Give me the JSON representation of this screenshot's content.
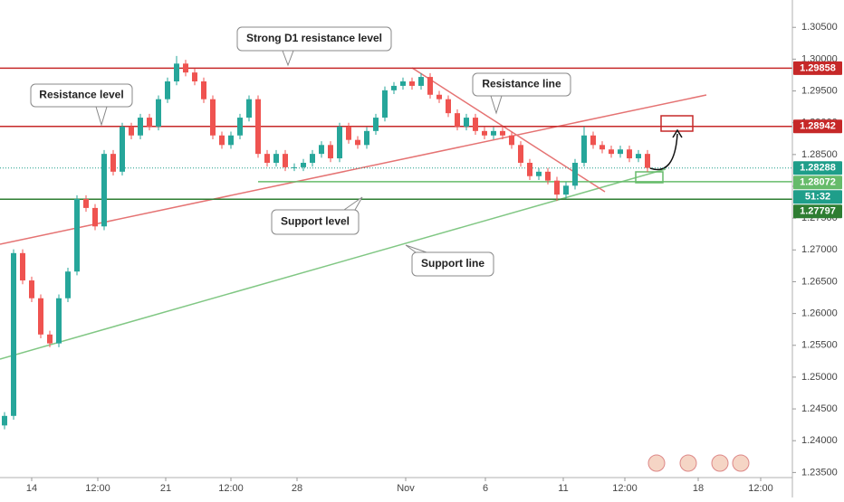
{
  "chart_data": {
    "type": "candlestick",
    "up_color": "#26a69a",
    "down_color": "#ef5350",
    "x": [
      0.5,
      1.5,
      2.5,
      3.5,
      4.5,
      5.5,
      6.5,
      7.5,
      8.5,
      9.5,
      10.5,
      11.5,
      12.5,
      13.5,
      14.5,
      15.5,
      16.5,
      17.5,
      18.5,
      19.5,
      20.5,
      21.5,
      22.5,
      23.5,
      24.5,
      25.5,
      26.5,
      27.5,
      28.5,
      29.5,
      30.5,
      31.5,
      32.5,
      33.5,
      34.5,
      35.5,
      36.5,
      37.5,
      38.5,
      39.5,
      40.5,
      41.5,
      42.5,
      43.5,
      44.5,
      45.5,
      46.5,
      47.5,
      48.5,
      49.5,
      50.5,
      51.5,
      52.5,
      53.5,
      54.5,
      55.5,
      56.5,
      57.5,
      58.5,
      59.5,
      60.5,
      61.5,
      62.5,
      63.5,
      64.5,
      65.5,
      66.5,
      67.5,
      68.5,
      69.5,
      70.5,
      71.5
    ],
    "open": [
      1.2424,
      1.2439,
      1.2695,
      1.2652,
      1.2624,
      1.2567,
      1.2553,
      1.2624,
      1.2666,
      1.278,
      1.2766,
      1.2737,
      1.2851,
      1.2823,
      1.2894,
      1.288,
      1.2908,
      1.2894,
      1.2937,
      1.2965,
      1.2993,
      1.2979,
      1.2965,
      1.2937,
      1.288,
      1.2865,
      1.288,
      1.2908,
      1.2937,
      1.2851,
      1.2837,
      1.2851,
      1.283,
      1.283,
      1.2837,
      1.2851,
      1.2865,
      1.2844,
      1.2894,
      1.2873,
      1.2865,
      1.2887,
      1.2908,
      1.2951,
      1.2958,
      1.2965,
      1.2958,
      1.2972,
      1.2944,
      1.2937,
      1.2915,
      1.2894,
      1.2908,
      1.2887,
      1.288,
      1.2887,
      1.288,
      1.2865,
      1.2837,
      1.2816,
      1.2823,
      1.2809,
      1.2787,
      1.2801,
      1.2837,
      1.288,
      1.2865,
      1.2858,
      1.2851,
      1.2858,
      1.2844,
      1.2851
    ],
    "high": [
      1.2445,
      1.2701,
      1.2701,
      1.2658,
      1.263,
      1.2573,
      1.263,
      1.2672,
      1.2786,
      1.2786,
      1.2772,
      1.2857,
      1.2857,
      1.29,
      1.29,
      1.2914,
      1.2914,
      1.2943,
      1.2971,
      1.3005,
      1.2999,
      1.2985,
      1.2971,
      1.2943,
      1.2886,
      1.2886,
      1.2914,
      1.2943,
      1.2943,
      1.2857,
      1.2857,
      1.2857,
      1.2836,
      1.2843,
      1.2857,
      1.2871,
      1.2871,
      1.29,
      1.29,
      1.2879,
      1.2893,
      1.2914,
      1.2957,
      1.2964,
      1.2971,
      1.2971,
      1.2978,
      1.2978,
      1.295,
      1.2943,
      1.2921,
      1.2914,
      1.2914,
      1.2893,
      1.2893,
      1.2893,
      1.2886,
      1.2871,
      1.2843,
      1.2829,
      1.2829,
      1.2815,
      1.2807,
      1.2843,
      1.2894,
      1.2886,
      1.2871,
      1.2864,
      1.2864,
      1.2864,
      1.2857,
      1.2857
    ],
    "low": [
      1.2418,
      1.2433,
      1.2646,
      1.2618,
      1.2561,
      1.2547,
      1.2547,
      1.2618,
      1.266,
      1.276,
      1.2731,
      1.2731,
      1.2817,
      1.2817,
      1.2874,
      1.2874,
      1.2888,
      1.2888,
      1.2931,
      1.2959,
      1.2973,
      1.2959,
      1.2931,
      1.2874,
      1.2859,
      1.2859,
      1.2874,
      1.2902,
      1.2845,
      1.2831,
      1.2831,
      1.2824,
      1.2824,
      1.2824,
      1.2831,
      1.2845,
      1.2838,
      1.2838,
      1.2867,
      1.2859,
      1.2859,
      1.2881,
      1.2902,
      1.2945,
      1.2952,
      1.2952,
      1.2952,
      1.2938,
      1.2931,
      1.2909,
      1.2888,
      1.2888,
      1.2881,
      1.2874,
      1.2874,
      1.2874,
      1.2859,
      1.2831,
      1.281,
      1.281,
      1.2803,
      1.2777,
      1.2781,
      1.2795,
      1.2831,
      1.2859,
      1.2852,
      1.2845,
      1.2845,
      1.2838,
      1.2838,
      1.2823
    ],
    "close": [
      1.2439,
      1.2695,
      1.2652,
      1.2624,
      1.2567,
      1.2553,
      1.2624,
      1.2666,
      1.278,
      1.2766,
      1.2737,
      1.2851,
      1.2823,
      1.2894,
      1.288,
      1.2908,
      1.2894,
      1.2937,
      1.2965,
      1.2993,
      1.2979,
      1.2965,
      1.2937,
      1.288,
      1.2865,
      1.288,
      1.2908,
      1.2937,
      1.2851,
      1.2837,
      1.2851,
      1.283,
      1.283,
      1.2837,
      1.2851,
      1.2865,
      1.2844,
      1.2894,
      1.2873,
      1.2865,
      1.2887,
      1.2908,
      1.2951,
      1.2958,
      1.2965,
      1.2958,
      1.2972,
      1.2944,
      1.2937,
      1.2915,
      1.2894,
      1.2908,
      1.2887,
      1.288,
      1.2887,
      1.288,
      1.2865,
      1.2837,
      1.2816,
      1.2823,
      1.2809,
      1.2787,
      1.2801,
      1.2837,
      1.288,
      1.2865,
      1.2858,
      1.2851,
      1.2858,
      1.2844,
      1.2851,
      1.2829
    ],
    "xlim": [
      0,
      87.5
    ],
    "xticks": [
      {
        "value": 3.5,
        "label": "14"
      },
      {
        "value": 10.8,
        "label": "12:00"
      },
      {
        "value": 18.3,
        "label": "21"
      },
      {
        "value": 25.5,
        "label": "12:00"
      },
      {
        "value": 32.8,
        "label": "28"
      },
      {
        "value": 44.8,
        "label": "Nov"
      },
      {
        "value": 53.6,
        "label": "6"
      },
      {
        "value": 62.2,
        "label": "11"
      },
      {
        "value": 69,
        "label": "12:00"
      },
      {
        "value": 77.1,
        "label": "18"
      },
      {
        "value": 84,
        "label": "12:00"
      }
    ],
    "ylim": [
      1.2342,
      1.3093
    ],
    "yticks": [
      {
        "value": 1.235,
        "label": "1.23500"
      },
      {
        "value": 1.24,
        "label": "1.24000"
      },
      {
        "value": 1.245,
        "label": "1.24500"
      },
      {
        "value": 1.25,
        "label": "1.25000"
      },
      {
        "value": 1.255,
        "label": "1.25500"
      },
      {
        "value": 1.26,
        "label": "1.26000"
      },
      {
        "value": 1.265,
        "label": "1.26500"
      },
      {
        "value": 1.27,
        "label": "1.27000"
      },
      {
        "value": 1.275,
        "label": "1.27500"
      },
      {
        "value": 1.28,
        "label": "1.28000"
      },
      {
        "value": 1.285,
        "label": "1.28500"
      },
      {
        "value": 1.29,
        "label": "1.29000"
      },
      {
        "value": 1.295,
        "label": "1.29500"
      },
      {
        "value": 1.3,
        "label": "1.30000"
      },
      {
        "value": 1.305,
        "label": "1.30500"
      }
    ],
    "levels": [
      {
        "value": 1.29858,
        "color": "#c62828"
      },
      {
        "value": 1.28942,
        "color": "#c62828"
      },
      {
        "value": 1.28072,
        "color": "#66bb6a"
      },
      {
        "value": 1.27797,
        "color": "#2e7d32"
      }
    ],
    "current_price": {
      "value": 1.28288,
      "color": "#1f9e8a"
    },
    "countdown": "51:32",
    "annotations": [
      "Strong D1 resistance level",
      "Resistance level",
      "Resistance line",
      "Support level",
      "Support line"
    ]
  }
}
